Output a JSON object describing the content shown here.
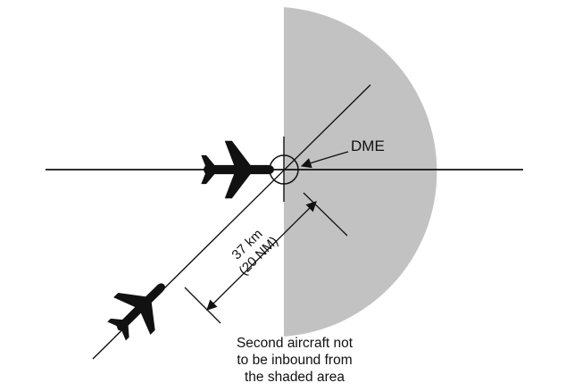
{
  "diagram": {
    "dme_label": "DME",
    "distance_km": "37 km",
    "distance_nm": "(20 NM)",
    "caption_line1": "Second aircraft not",
    "caption_line2": "to be inbound from",
    "caption_line3": "the shaded area"
  },
  "colors": {
    "shaded_area": "#c2c2c2",
    "ink": "#111111",
    "background": "#ffffff"
  },
  "icons": [
    "aircraft-icon",
    "aircraft-icon"
  ]
}
